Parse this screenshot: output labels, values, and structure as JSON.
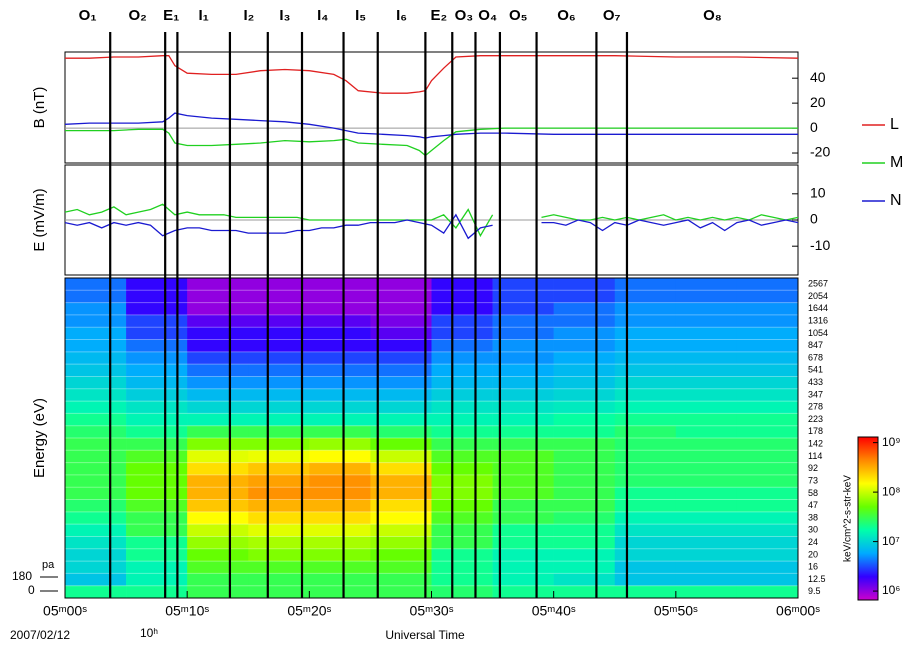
{
  "chart_data": [
    {
      "type": "line",
      "ylabel": "B (nT)",
      "ylim": [
        -28,
        61
      ],
      "yticks": [
        -20,
        0,
        20,
        40
      ],
      "zero_line": true,
      "legend": "right",
      "x": [
        0,
        2,
        4,
        6,
        8,
        8.5,
        9,
        10,
        12,
        14,
        16,
        18,
        20,
        22,
        23,
        24,
        26,
        28,
        29,
        29.5,
        30,
        31,
        32,
        34,
        36,
        40,
        45,
        50,
        55,
        60
      ],
      "series": [
        {
          "name": "L",
          "color": "#e02020",
          "values": [
            56,
            56,
            57,
            57,
            58,
            58,
            50,
            44,
            43,
            43,
            46,
            47,
            46,
            43,
            38,
            30,
            28,
            28,
            29,
            30,
            38,
            48,
            57,
            58,
            58,
            58,
            58,
            57,
            57,
            56
          ]
        },
        {
          "name": "M",
          "color": "#20d020",
          "values": [
            -2,
            -2,
            -2,
            -1,
            -1,
            -4,
            -12,
            -14,
            -14,
            -13,
            -12,
            -10,
            -11,
            -10,
            -9,
            -12,
            -13,
            -14,
            -18,
            -22,
            -18,
            -10,
            -3,
            -1,
            0,
            0,
            0,
            0,
            0,
            0
          ]
        },
        {
          "name": "N",
          "color": "#1a1ad0",
          "values": [
            3,
            4,
            4,
            4,
            5,
            8,
            12,
            10,
            8,
            7,
            6,
            5,
            3,
            0,
            -2,
            -4,
            -5,
            -6,
            -7,
            -8,
            -7,
            -6,
            -5,
            -4,
            -4,
            -5,
            -5,
            -5,
            -5,
            -5
          ]
        }
      ]
    },
    {
      "type": "line",
      "ylabel": "E (mV/m)",
      "ylim": [
        -21,
        21
      ],
      "yticks": [
        -10,
        0,
        10
      ],
      "zero_line": true,
      "x": [
        0,
        1,
        2,
        3,
        4,
        5,
        6,
        7,
        8,
        9,
        10,
        11,
        12,
        13,
        14,
        15,
        16,
        17,
        18,
        19,
        20,
        21,
        22,
        23,
        24,
        25,
        26,
        27,
        28,
        29,
        30,
        31,
        32,
        33,
        34,
        35,
        36,
        37,
        38,
        39,
        40,
        41,
        42,
        43,
        44,
        45,
        46,
        47,
        48,
        49,
        50,
        51,
        52,
        53,
        54,
        55,
        56,
        57,
        58,
        59,
        60
      ],
      "series": [
        {
          "color": "#20d020",
          "values": [
            3,
            4,
            2,
            3,
            5,
            2,
            3,
            4,
            6,
            2,
            3,
            2,
            2,
            2,
            1,
            1,
            1,
            1,
            1,
            1,
            0,
            0,
            0,
            0,
            0,
            0,
            0,
            0,
            0,
            0,
            0,
            2,
            -3,
            4,
            -6,
            2,
            null,
            null,
            null,
            1,
            2,
            1,
            0,
            0,
            1,
            0,
            1,
            0,
            1,
            2,
            0,
            1,
            0,
            1,
            0,
            1,
            0,
            2,
            1,
            0,
            1
          ]
        },
        {
          "color": "#1a1ad0",
          "values": [
            -1,
            -2,
            -1,
            -3,
            -1,
            -2,
            -1,
            -2,
            -6,
            -4,
            -3,
            -3,
            -4,
            -4,
            -4,
            -5,
            -5,
            -5,
            -5,
            -4,
            -4,
            -3,
            -3,
            -2,
            -2,
            -1,
            -1,
            -1,
            0,
            -1,
            -2,
            -5,
            2,
            -7,
            -3,
            -2,
            null,
            null,
            null,
            -1,
            -1,
            -2,
            0,
            -1,
            -4,
            -1,
            -2,
            0,
            -1,
            -2,
            -1,
            0,
            -3,
            -1,
            -4,
            -1,
            0,
            -2,
            -1,
            0,
            -1
          ]
        }
      ]
    },
    {
      "type": "heatmap",
      "ylabel": "Energy (eV)",
      "time_bins": [
        0,
        5,
        10,
        15,
        20,
        25,
        30,
        35,
        40,
        45,
        50,
        55,
        60
      ],
      "categories": [
        "2567",
        "2054",
        "1644",
        "1316",
        "1054",
        "847",
        "678",
        "541",
        "433",
        "347",
        "278",
        "223",
        "178",
        "142",
        "114",
        "92",
        "73",
        "58",
        "47",
        "38",
        "30",
        "24",
        "20",
        "16",
        "12.5",
        "9.5"
      ],
      "z": [
        [
          4000000.0,
          2000000.0,
          1000000.0,
          1000000.0,
          1000000.0,
          1000000.0,
          2000000.0,
          3000000.0,
          3000000.0,
          4000000.0,
          4000000.0,
          4000000.0
        ],
        [
          4000000.0,
          2000000.0,
          1000000.0,
          1000000.0,
          1000000.0,
          1000000.0,
          2000000.0,
          3000000.0,
          3000000.0,
          4000000.0,
          4000000.0,
          4000000.0
        ],
        [
          5000000.0,
          2000000.0,
          1000000.0,
          1000000.0,
          1000000.0,
          1000000.0,
          2000000.0,
          3000000.0,
          4000000.0,
          5000000.0,
          5000000.0,
          5000000.0
        ],
        [
          5000000.0,
          3000000.0,
          1500000.0,
          1500000.0,
          1500000.0,
          1200000.0,
          3000000.0,
          4000000.0,
          4000000.0,
          5000000.0,
          5000000.0,
          5000000.0
        ],
        [
          6000000.0,
          3000000.0,
          2000000.0,
          2000000.0,
          2000000.0,
          1500000.0,
          3000000.0,
          4000000.0,
          5000000.0,
          6000000.0,
          6000000.0,
          6000000.0
        ],
        [
          6000000.0,
          4000000.0,
          2000000.0,
          2000000.0,
          2000000.0,
          2000000.0,
          4000000.0,
          5000000.0,
          5000000.0,
          6000000.0,
          6000000.0,
          6000000.0
        ],
        [
          7000000.0,
          5000000.0,
          3000000.0,
          3000000.0,
          3000000.0,
          3000000.0,
          5000000.0,
          5000000.0,
          6000000.0,
          7000000.0,
          7000000.0,
          7000000.0
        ],
        [
          8000000.0,
          6000000.0,
          4000000.0,
          4000000.0,
          4000000.0,
          4000000.0,
          6000000.0,
          6000000.0,
          7000000.0,
          8000000.0,
          8000000.0,
          8000000.0
        ],
        [
          10000000.0,
          7000000.0,
          5000000.0,
          5000000.0,
          5000000.0,
          5000000.0,
          7000000.0,
          7000000.0,
          8000000.0,
          10000000.0,
          10000000.0,
          10000000.0
        ],
        [
          12000000.0,
          9000000.0,
          7000000.0,
          7000000.0,
          7000000.0,
          7000000.0,
          9000000.0,
          9000000.0,
          10000000.0,
          12000000.0,
          12000000.0,
          12000000.0
        ],
        [
          15000000.0,
          12000000.0,
          10000000.0,
          10000000.0,
          10000000.0,
          10000000.0,
          12000000.0,
          12000000.0,
          13000000.0,
          15000000.0,
          15000000.0,
          15000000.0
        ],
        [
          20000000.0,
          15000000.0,
          15000000.0,
          15000000.0,
          15000000.0,
          15000000.0,
          15000000.0,
          15000000.0,
          18000000.0,
          20000000.0,
          20000000.0,
          20000000.0
        ],
        [
          25000000.0,
          20000000.0,
          30000000.0,
          30000000.0,
          30000000.0,
          25000000.0,
          20000000.0,
          20000000.0,
          20000000.0,
          25000000.0,
          20000000.0,
          20000000.0
        ],
        [
          30000000.0,
          30000000.0,
          60000000.0,
          60000000.0,
          70000000.0,
          50000000.0,
          30000000.0,
          30000000.0,
          30000000.0,
          25000000.0,
          25000000.0,
          25000000.0
        ],
        [
          30000000.0,
          40000000.0,
          120000000.0,
          130000000.0,
          150000000.0,
          100000000.0,
          40000000.0,
          40000000.0,
          30000000.0,
          25000000.0,
          25000000.0,
          25000000.0
        ],
        [
          30000000.0,
          50000000.0,
          200000000.0,
          250000000.0,
          300000000.0,
          200000000.0,
          50000000.0,
          40000000.0,
          30000000.0,
          25000000.0,
          25000000.0,
          25000000.0
        ],
        [
          30000000.0,
          50000000.0,
          300000000.0,
          350000000.0,
          400000000.0,
          300000000.0,
          60000000.0,
          40000000.0,
          30000000.0,
          25000000.0,
          25000000.0,
          25000000.0
        ],
        [
          30000000.0,
          50000000.0,
          300000000.0,
          400000000.0,
          400000000.0,
          300000000.0,
          60000000.0,
          40000000.0,
          30000000.0,
          20000000.0,
          20000000.0,
          20000000.0
        ],
        [
          25000000.0,
          40000000.0,
          250000000.0,
          300000000.0,
          300000000.0,
          200000000.0,
          50000000.0,
          30000000.0,
          30000000.0,
          20000000.0,
          20000000.0,
          20000000.0
        ],
        [
          20000000.0,
          30000000.0,
          150000000.0,
          200000000.0,
          200000000.0,
          150000000.0,
          40000000.0,
          30000000.0,
          25000000.0,
          15000000.0,
          15000000.0,
          15000000.0
        ],
        [
          15000000.0,
          30000000.0,
          100000000.0,
          120000000.0,
          120000000.0,
          100000000.0,
          30000000.0,
          20000000.0,
          20000000.0,
          12000000.0,
          12000000.0,
          12000000.0
        ],
        [
          12000000.0,
          20000000.0,
          70000000.0,
          80000000.0,
          80000000.0,
          70000000.0,
          30000000.0,
          20000000.0,
          20000000.0,
          10000000.0,
          10000000.0,
          10000000.0
        ],
        [
          10000000.0,
          20000000.0,
          50000000.0,
          60000000.0,
          60000000.0,
          50000000.0,
          20000000.0,
          15000000.0,
          15000000.0,
          10000000.0,
          10000000.0,
          10000000.0
        ],
        [
          10000000.0,
          15000000.0,
          40000000.0,
          40000000.0,
          40000000.0,
          40000000.0,
          20000000.0,
          15000000.0,
          15000000.0,
          8000000.0,
          8000000.0,
          8000000.0
        ],
        [
          8000000.0,
          15000000.0,
          30000000.0,
          30000000.0,
          30000000.0,
          30000000.0,
          20000000.0,
          15000000.0,
          12000000.0,
          8000000.0,
          8000000.0,
          8000000.0
        ],
        [
          20000000.0,
          20000000.0,
          30000000.0,
          30000000.0,
          30000000.0,
          30000000.0,
          25000000.0,
          20000000.0,
          20000000.0,
          20000000.0,
          20000000.0,
          20000000.0
        ]
      ],
      "colorbar": {
        "label": "keV/cm^2-s-str-keV",
        "log": true,
        "clim": [
          660000,
          1300000000
        ],
        "ticks": [
          {
            "value": 1000000,
            "label": "10⁶"
          },
          {
            "value": 10000000,
            "label": "10⁷"
          },
          {
            "value": 100000000,
            "label": "10⁸"
          },
          {
            "value": 1000000000,
            "label": "10⁹"
          }
        ],
        "colormap": [
          "#cc00cc",
          "#3300ff",
          "#00aaff",
          "#00ffaa",
          "#66ff00",
          "#ffff00",
          "#ff8800",
          "#ff0000"
        ]
      }
    }
  ],
  "time_axis": {
    "xlim": [
      0,
      60
    ],
    "xlabel": "Universal Time",
    "date": "2007/02/12",
    "hour": "10ʰ",
    "xticks": [
      {
        "value": 0,
        "label": "05ᵐ00ˢ"
      },
      {
        "value": 10,
        "label": "05ᵐ10ˢ"
      },
      {
        "value": 20,
        "label": "05ᵐ20ˢ"
      },
      {
        "value": 30,
        "label": "05ᵐ30ˢ"
      },
      {
        "value": 40,
        "label": "05ᵐ40ˢ"
      },
      {
        "value": 50,
        "label": "05ᵐ50ˢ"
      },
      {
        "value": 60,
        "label": "06ᵐ00ˢ"
      }
    ]
  },
  "regions": {
    "boundaries": [
      3.7,
      8.2,
      9.2,
      13.5,
      16.6,
      19.4,
      22.8,
      25.6,
      29.5,
      31.7,
      33.6,
      35.6,
      38.6,
      43.5,
      46.0
    ],
    "labels": [
      "O₁",
      "O₂",
      "E₁",
      "I₁",
      "I₂",
      "I₃",
      "I₄",
      "I₅",
      "I₆",
      "E₂",
      "O₃",
      "O₄",
      "O₅",
      "O₆",
      "O₇",
      "O₈"
    ]
  },
  "pitch_angle": {
    "label": "pa",
    "ticks": [
      "180",
      "0"
    ]
  }
}
